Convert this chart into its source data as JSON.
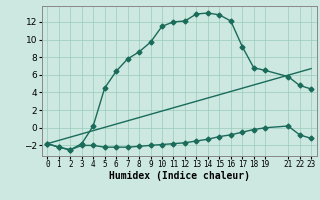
{
  "xlabel": "Humidex (Indice chaleur)",
  "ylabel": "",
  "background_color": "#cce8e0",
  "grid_color": "#99ccbb",
  "line_color": "#1a6b5a",
  "xlim": [
    -0.5,
    23.5
  ],
  "ylim": [
    -3.2,
    13.8
  ],
  "yticks": [
    -2,
    0,
    2,
    4,
    6,
    8,
    10,
    12
  ],
  "xticks": [
    0,
    1,
    2,
    3,
    4,
    5,
    6,
    7,
    8,
    9,
    10,
    11,
    12,
    13,
    14,
    15,
    16,
    17,
    18,
    19,
    21,
    22,
    23
  ],
  "upper_curve_x": [
    0,
    1,
    2,
    3,
    4,
    5,
    6,
    7,
    8,
    9,
    10,
    11,
    12,
    13,
    14,
    15,
    16,
    17,
    18,
    19,
    21,
    22,
    23
  ],
  "upper_curve_y": [
    -1.8,
    -2.2,
    -2.5,
    -1.8,
    0.2,
    4.5,
    6.4,
    7.8,
    8.6,
    9.7,
    11.5,
    12.0,
    12.1,
    12.9,
    13.0,
    12.8,
    12.1,
    9.2,
    6.8,
    6.5,
    5.8,
    4.8,
    4.4
  ],
  "lower_curve_x": [
    0,
    1,
    2,
    3,
    4,
    5,
    6,
    7,
    8,
    9,
    10,
    11,
    12,
    13,
    14,
    15,
    16,
    17,
    18,
    19,
    21,
    22,
    23
  ],
  "lower_curve_y": [
    -1.8,
    -2.2,
    -2.5,
    -2.0,
    -2.0,
    -2.2,
    -2.2,
    -2.2,
    -2.1,
    -2.0,
    -1.9,
    -1.8,
    -1.7,
    -1.5,
    -1.3,
    -1.0,
    -0.8,
    -0.5,
    -0.2,
    0.0,
    0.2,
    -0.8,
    -1.2
  ],
  "diag_line_x": [
    0,
    23
  ],
  "diag_line_y": [
    -1.8,
    6.7
  ]
}
